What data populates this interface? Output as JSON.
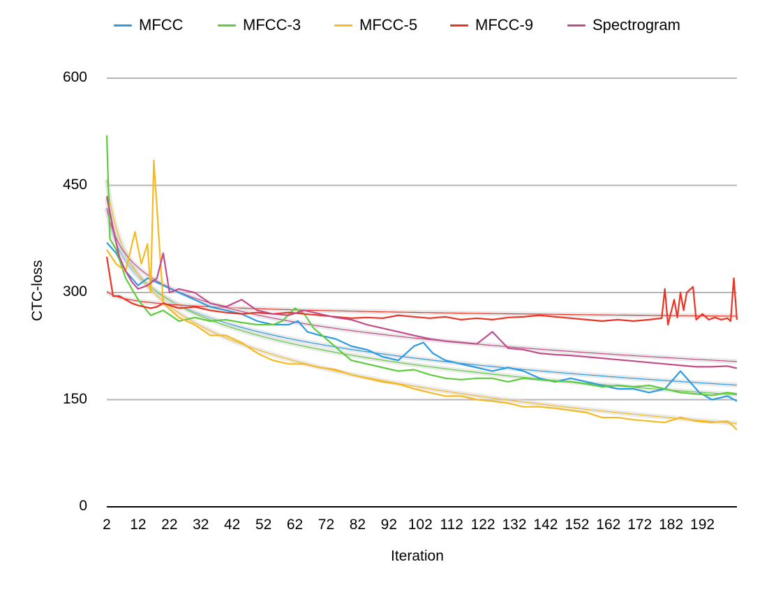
{
  "chart_data": {
    "type": "line",
    "title": "",
    "xlabel": "Iteration",
    "ylabel": "CTC-loss",
    "xlim": [
      2,
      203
    ],
    "ylim": [
      0,
      600
    ],
    "yticks": [
      "0",
      "150",
      "300",
      "450",
      "600"
    ],
    "xticks": [
      "2",
      "12",
      "22",
      "32",
      "42",
      "52",
      "62",
      "72",
      "82",
      "92",
      "102",
      "112",
      "122",
      "132",
      "142",
      "152",
      "162",
      "172",
      "182",
      "192"
    ],
    "grid": "horizontal",
    "legend_position": "top",
    "trendlines": true,
    "series": [
      {
        "name": "MFCC",
        "color": "#2b9be3",
        "x": [
          2,
          5,
          8,
          12,
          15,
          20,
          25,
          30,
          35,
          40,
          45,
          50,
          55,
          60,
          63,
          66,
          70,
          75,
          80,
          85,
          90,
          95,
          100,
          103,
          106,
          110,
          115,
          120,
          125,
          130,
          135,
          140,
          145,
          150,
          155,
          160,
          165,
          170,
          175,
          180,
          185,
          188,
          191,
          195,
          200,
          203
        ],
        "y": [
          370,
          355,
          330,
          310,
          320,
          310,
          300,
          290,
          280,
          275,
          270,
          260,
          255,
          255,
          260,
          245,
          240,
          235,
          225,
          220,
          210,
          205,
          225,
          230,
          215,
          205,
          200,
          195,
          190,
          195,
          190,
          180,
          175,
          180,
          175,
          170,
          165,
          165,
          160,
          165,
          190,
          175,
          160,
          150,
          155,
          148
        ]
      },
      {
        "name": "MFCC-3",
        "color": "#5dcc3c",
        "x": [
          2,
          3,
          5,
          8,
          12,
          16,
          20,
          25,
          30,
          35,
          40,
          45,
          50,
          55,
          58,
          62,
          65,
          68,
          72,
          76,
          80,
          85,
          90,
          95,
          100,
          105,
          110,
          115,
          120,
          125,
          130,
          135,
          140,
          145,
          150,
          155,
          160,
          165,
          170,
          175,
          180,
          185,
          190,
          195,
          200,
          203
        ],
        "y": [
          520,
          375,
          360,
          320,
          290,
          268,
          275,
          260,
          265,
          260,
          262,
          258,
          255,
          255,
          260,
          278,
          270,
          250,
          235,
          220,
          205,
          200,
          195,
          190,
          192,
          185,
          180,
          178,
          180,
          180,
          175,
          180,
          178,
          176,
          175,
          172,
          168,
          170,
          168,
          170,
          165,
          160,
          158,
          156,
          160,
          158
        ]
      },
      {
        "name": "MFCC-5",
        "color": "#f5b921",
        "x": [
          2,
          5,
          8,
          11,
          13,
          15,
          16,
          17,
          20,
          25,
          30,
          35,
          40,
          45,
          50,
          55,
          60,
          65,
          70,
          75,
          80,
          85,
          90,
          95,
          100,
          105,
          110,
          115,
          120,
          125,
          130,
          135,
          140,
          145,
          150,
          155,
          160,
          165,
          170,
          175,
          180,
          185,
          190,
          195,
          200,
          203
        ],
        "y": [
          360,
          340,
          330,
          385,
          340,
          368,
          300,
          485,
          285,
          265,
          255,
          240,
          240,
          230,
          215,
          205,
          200,
          200,
          195,
          192,
          185,
          180,
          175,
          172,
          165,
          160,
          155,
          155,
          150,
          148,
          145,
          140,
          140,
          138,
          135,
          132,
          125,
          125,
          122,
          120,
          118,
          125,
          120,
          118,
          120,
          108
        ]
      },
      {
        "name": "MFCC-9",
        "color": "#ea3323",
        "x": [
          2,
          4,
          6,
          8,
          10,
          12,
          14,
          16,
          18,
          20,
          25,
          30,
          35,
          40,
          45,
          50,
          55,
          60,
          65,
          70,
          75,
          80,
          85,
          90,
          95,
          100,
          105,
          110,
          115,
          120,
          125,
          130,
          135,
          140,
          145,
          150,
          155,
          160,
          165,
          170,
          175,
          179,
          180,
          181,
          183,
          184,
          185,
          186,
          187,
          189,
          190,
          192,
          194,
          196,
          198,
          200,
          201,
          202,
          203
        ],
        "y": [
          350,
          295,
          295,
          290,
          285,
          282,
          280,
          278,
          280,
          285,
          278,
          280,
          275,
          272,
          270,
          272,
          270,
          272,
          270,
          268,
          266,
          264,
          265,
          264,
          268,
          266,
          264,
          266,
          262,
          264,
          262,
          265,
          266,
          268,
          266,
          264,
          262,
          260,
          262,
          260,
          262,
          264,
          305,
          255,
          290,
          265,
          300,
          275,
          300,
          308,
          262,
          270,
          262,
          265,
          262,
          264,
          260,
          320,
          262
        ]
      },
      {
        "name": "Spectrogram",
        "color": "#c44b8a",
        "x": [
          2,
          4,
          6,
          8,
          10,
          12,
          15,
          18,
          20,
          22,
          25,
          30,
          35,
          40,
          45,
          50,
          55,
          60,
          65,
          70,
          75,
          80,
          85,
          90,
          95,
          100,
          105,
          110,
          115,
          120,
          125,
          130,
          135,
          140,
          145,
          150,
          155,
          160,
          165,
          170,
          175,
          180,
          185,
          190,
          195,
          200,
          203
        ],
        "y": [
          435,
          390,
          350,
          330,
          315,
          305,
          310,
          320,
          355,
          300,
          305,
          300,
          285,
          280,
          290,
          275,
          270,
          268,
          275,
          270,
          265,
          262,
          255,
          250,
          245,
          240,
          235,
          232,
          230,
          228,
          245,
          222,
          220,
          215,
          213,
          212,
          210,
          208,
          206,
          204,
          202,
          200,
          198,
          196,
          196,
          197,
          194
        ]
      }
    ]
  }
}
